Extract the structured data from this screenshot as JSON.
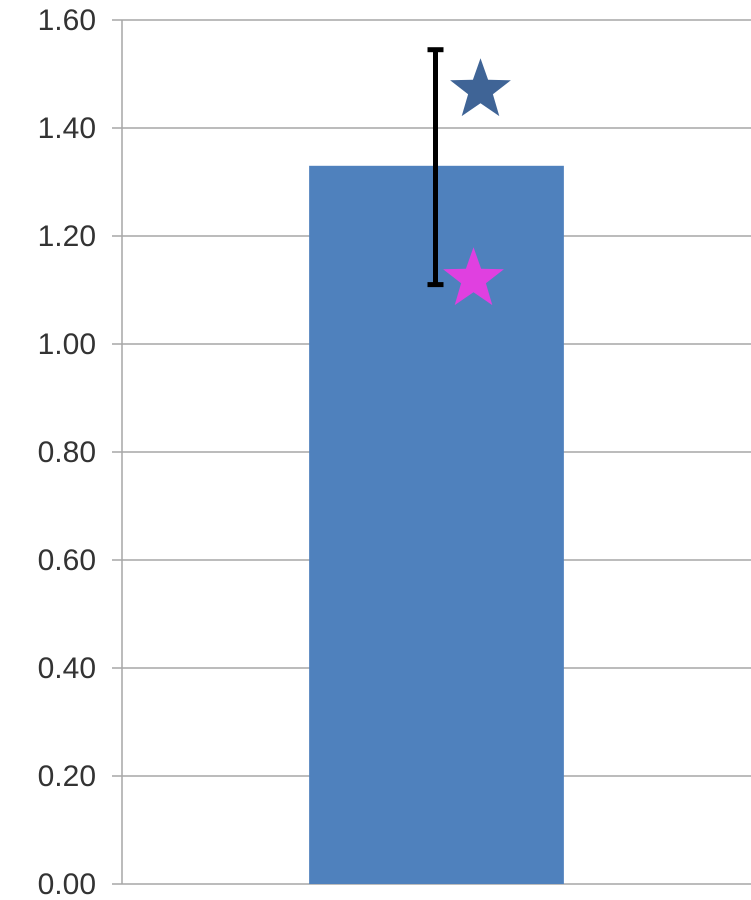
{
  "chart_data": {
    "type": "bar",
    "title": "",
    "xlabel": "",
    "ylabel": "",
    "categories": [
      ""
    ],
    "values": [
      1.33
    ],
    "error_bars": [
      {
        "low": 1.11,
        "high": 1.545
      }
    ],
    "markers": [
      {
        "shape": "star",
        "color": "#3f6496",
        "y": 1.47
      },
      {
        "shape": "star",
        "color": "#e040e0",
        "y": 1.12
      }
    ],
    "ylim": [
      0,
      1.6
    ],
    "yticks": [
      "0.00",
      "0.20",
      "0.40",
      "0.60",
      "0.80",
      "1.00",
      "1.20",
      "1.40",
      "1.60"
    ],
    "grid": true,
    "legend": "none",
    "colors": {
      "bar": "#4f81bd",
      "gridline": "#a6a6a6",
      "error_bar": "#000000"
    }
  }
}
